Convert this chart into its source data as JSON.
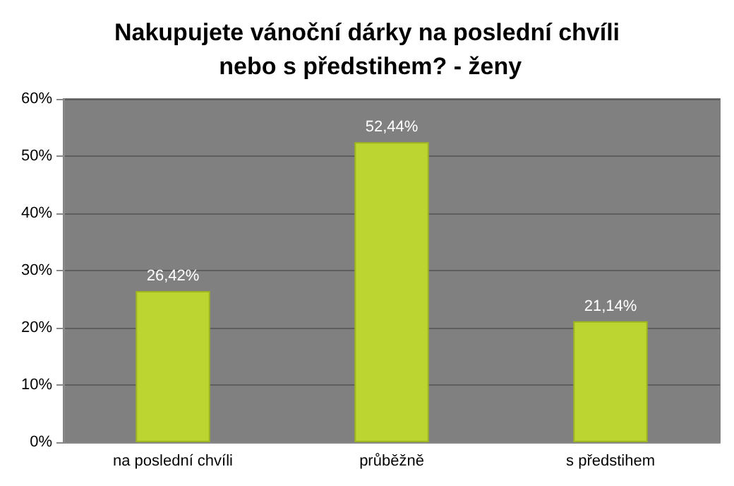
{
  "chart_data": {
    "type": "bar",
    "title": "Nakupujete vánoční dárky na poslední chvíli nebo s předstihem? - ženy",
    "categories": [
      "na poslední chvíli",
      "průběžně",
      "s předstihem"
    ],
    "values": [
      26.42,
      52.44,
      21.14
    ],
    "value_labels": [
      "26,42%",
      "52,44%",
      "21,14%"
    ],
    "color": "#bcd531",
    "ylim": [
      0,
      60
    ],
    "yticks": [
      {
        "value": 0,
        "label": "0%"
      },
      {
        "value": 10,
        "label": "10%"
      },
      {
        "value": 20,
        "label": "20%"
      },
      {
        "value": 30,
        "label": "30%"
      },
      {
        "value": 40,
        "label": "40%"
      },
      {
        "value": 50,
        "label": "50%"
      },
      {
        "value": 60,
        "label": "60%"
      }
    ],
    "grid": "y"
  }
}
